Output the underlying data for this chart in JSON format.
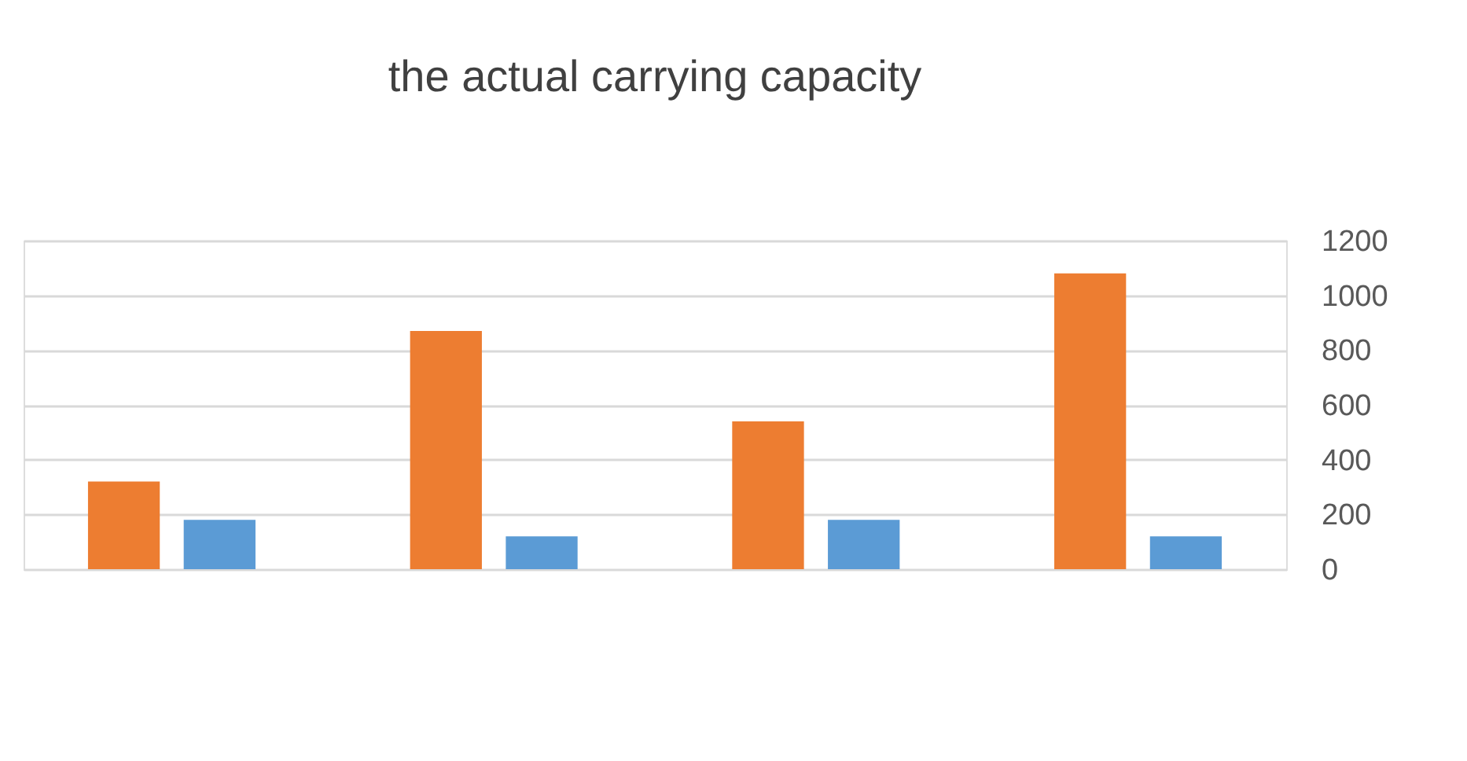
{
  "chart_data": {
    "type": "bar",
    "title": "the actual carrying capacity",
    "categories": [
      null,
      null,
      null,
      null
    ],
    "series": [
      {
        "color": "#ed7d31",
        "values": [
          320,
          870,
          540,
          1080
        ]
      },
      {
        "color": "#5b9bd5",
        "values": [
          180,
          120,
          180,
          120
        ]
      }
    ],
    "ylim": [
      0,
      1200
    ],
    "yticks": [
      0,
      200,
      400,
      600,
      800,
      1000,
      1200
    ],
    "grid": "y"
  }
}
